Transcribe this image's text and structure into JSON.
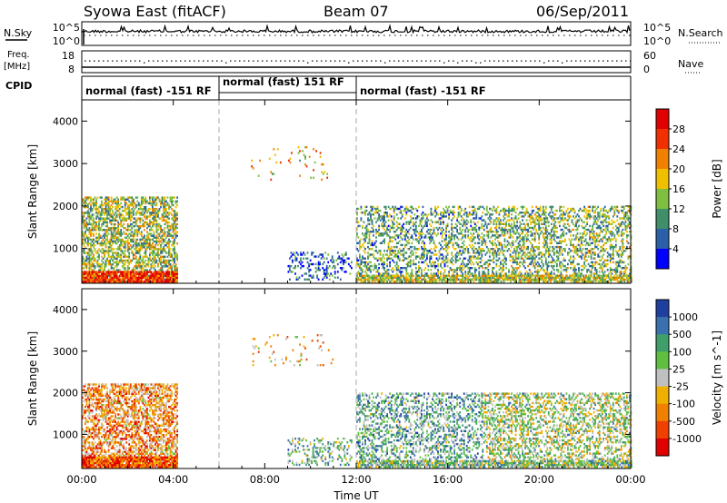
{
  "header": {
    "title": "Syowa East (fitACF)",
    "beam": "Beam 07",
    "date": "06/Sep/2011"
  },
  "noise_panel": {
    "left_label": "N.Sky",
    "left_ticks": [
      "10^5",
      "10^0"
    ],
    "right_label": "N.Search",
    "right_ticks": [
      "10^5",
      "10^0"
    ]
  },
  "freq_panel": {
    "left_label_1": "Freq.",
    "left_label_2": "[MHz]",
    "left_ticks": [
      "18",
      "8"
    ],
    "right_label": "Nave",
    "right_ticks": [
      "60",
      "0"
    ]
  },
  "cpid_panel": {
    "label": "CPID",
    "segments": [
      {
        "start": 0,
        "end": 6,
        "text": "normal (fast) -151 RF"
      },
      {
        "start": 6,
        "end": 12,
        "text": "normal (fast) 151 RF"
      },
      {
        "start": 12,
        "end": 24,
        "text": "normal (fast) -151 RF"
      }
    ]
  },
  "chart_data": [
    {
      "type": "heatmap",
      "quantity": "power",
      "ylabel": "Slant Range [km]",
      "ylim": [
        180,
        4500
      ],
      "xlim": [
        0,
        24
      ],
      "yticks": [
        "1000",
        "2000",
        "3000",
        "4000"
      ],
      "colorbar": {
        "label": "Power [dB]",
        "ticks": [
          "4",
          "8",
          "12",
          "16",
          "20",
          "24",
          "28"
        ],
        "colors": [
          "#0000ff",
          "#2b5fa8",
          "#3f8f6a",
          "#7fbf3f",
          "#f0c000",
          "#f08000",
          "#f03000",
          "#e00000"
        ]
      }
    },
    {
      "type": "heatmap",
      "quantity": "velocity",
      "ylabel": "Slant Range [km]",
      "ylim": [
        180,
        4500
      ],
      "xlim": [
        0,
        24
      ],
      "yticks": [
        "1000",
        "2000",
        "3000",
        "4000"
      ],
      "colorbar": {
        "label": "Velocity [m s^-1]",
        "ticks": [
          "1000",
          "500",
          "100",
          "25",
          "-25",
          "-100",
          "-500",
          "-1000"
        ],
        "colors": [
          "#1f3fa0",
          "#3a6fb0",
          "#3f9f6a",
          "#5fc040",
          "#c0c0c0",
          "#f0b000",
          "#f08000",
          "#f04000",
          "#e00000"
        ]
      }
    }
  ],
  "x_axis": {
    "label": "Time UT",
    "ticks": [
      "00:00",
      "04:00",
      "08:00",
      "12:00",
      "16:00",
      "20:00",
      "00:00"
    ]
  }
}
